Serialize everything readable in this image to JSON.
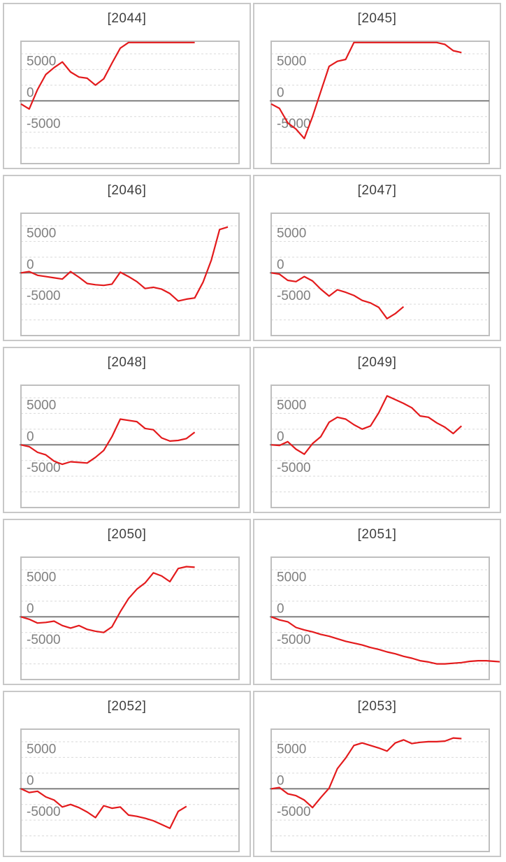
{
  "charts_meta": {
    "y_tick_labels": [
      "5000",
      "0",
      "-5000"
    ],
    "line_color": "#e31a1c",
    "zero_line_color": "#808080",
    "grid_color": "#d9d9d9"
  },
  "chart_data": [
    {
      "type": "line",
      "title": "[2044]",
      "ylim": [
        -10000,
        9500
      ],
      "y_ticks": [
        5000,
        0,
        -5000
      ],
      "grid": true,
      "x": [
        0,
        1,
        2,
        3,
        4,
        5,
        6,
        7,
        8,
        9,
        10,
        11,
        12,
        13,
        14,
        15,
        16,
        17,
        18,
        19,
        20,
        21
      ],
      "y": [
        -500,
        -1300,
        1800,
        4200,
        5300,
        6200,
        4600,
        3800,
        3600,
        2500,
        3500,
        6000,
        8400,
        9300,
        9300,
        9300,
        9300,
        9300,
        9300,
        9300,
        9300,
        9300
      ]
    },
    {
      "type": "line",
      "title": "[2045]",
      "ylim": [
        -10000,
        9500
      ],
      "y_ticks": [
        5000,
        0,
        -5000
      ],
      "grid": true,
      "x": [
        0,
        1,
        2,
        3,
        4,
        5,
        6,
        7,
        8,
        9,
        10,
        11,
        12,
        13,
        14,
        15,
        16,
        17,
        18,
        19,
        20,
        21,
        22,
        23
      ],
      "y": [
        -500,
        -1200,
        -3500,
        -4500,
        -6000,
        -2500,
        1500,
        5500,
        6300,
        6600,
        9300,
        9300,
        9300,
        9300,
        9300,
        9300,
        9300,
        9300,
        9300,
        9300,
        9300,
        9000,
        8000,
        7700
      ]
    },
    {
      "type": "line",
      "title": "[2046]",
      "ylim": [
        -10000,
        9500
      ],
      "y_ticks": [
        5000,
        0,
        -5000
      ],
      "grid": true,
      "x": [
        0,
        1,
        2,
        3,
        4,
        5,
        6,
        7,
        8,
        9,
        10,
        11,
        12,
        13,
        14,
        15,
        16,
        17,
        18,
        19,
        20,
        21,
        22,
        23,
        24,
        25
      ],
      "y": [
        0,
        200,
        -400,
        -600,
        -800,
        -1000,
        200,
        -700,
        -1700,
        -1900,
        -2000,
        -1800,
        100,
        -600,
        -1400,
        -2500,
        -2300,
        -2600,
        -3300,
        -4500,
        -4200,
        -4000,
        -1500,
        2000,
        6900,
        7300
      ]
    },
    {
      "type": "line",
      "title": "[2047]",
      "ylim": [
        -10000,
        9500
      ],
      "y_ticks": [
        5000,
        0,
        -5000
      ],
      "grid": true,
      "x": [
        0,
        1,
        2,
        3,
        4,
        5,
        6,
        7,
        8,
        9,
        10,
        11,
        12,
        13,
        14,
        15,
        16
      ],
      "y": [
        0,
        -200,
        -1200,
        -1400,
        -600,
        -1300,
        -2600,
        -3700,
        -2700,
        -3100,
        -3600,
        -4400,
        -4800,
        -5500,
        -7300,
        -6500,
        -5400
      ]
    },
    {
      "type": "line",
      "title": "[2048]",
      "ylim": [
        -10000,
        9500
      ],
      "y_ticks": [
        5000,
        0,
        -5000
      ],
      "grid": true,
      "x": [
        0,
        1,
        2,
        3,
        4,
        5,
        6,
        7,
        8,
        9,
        10,
        11,
        12,
        13,
        14,
        15,
        16,
        17,
        18,
        19,
        20,
        21
      ],
      "y": [
        0,
        -300,
        -1200,
        -1600,
        -2600,
        -3100,
        -2700,
        -2800,
        -2900,
        -2000,
        -900,
        1300,
        4100,
        3900,
        3700,
        2600,
        2400,
        1100,
        600,
        700,
        1000,
        2000
      ]
    },
    {
      "type": "line",
      "title": "[2049]",
      "ylim": [
        -10000,
        9500
      ],
      "y_ticks": [
        5000,
        0,
        -5000
      ],
      "grid": true,
      "x": [
        0,
        1,
        2,
        3,
        4,
        5,
        6,
        7,
        8,
        9,
        10,
        11,
        12,
        13,
        14,
        15,
        16,
        17,
        18,
        19,
        20,
        21,
        22,
        23
      ],
      "y": [
        0,
        -100,
        500,
        -700,
        -1500,
        200,
        1300,
        3600,
        4400,
        4100,
        3200,
        2500,
        3000,
        5100,
        7800,
        7200,
        6600,
        5900,
        4600,
        4400,
        3500,
        2800,
        1800,
        3000
      ]
    },
    {
      "type": "line",
      "title": "[2050]",
      "ylim": [
        -10000,
        9500
      ],
      "y_ticks": [
        5000,
        0,
        -5000
      ],
      "grid": true,
      "x": [
        0,
        1,
        2,
        3,
        4,
        5,
        6,
        7,
        8,
        9,
        10,
        11,
        12,
        13,
        14,
        15,
        16,
        17,
        18,
        19,
        20,
        21
      ],
      "y": [
        0,
        -400,
        -1000,
        -900,
        -700,
        -1400,
        -1800,
        -1400,
        -2000,
        -2300,
        -2500,
        -1600,
        800,
        2900,
        4400,
        5400,
        7000,
        6500,
        5600,
        7700,
        8000,
        7900
      ]
    },
    {
      "type": "line",
      "title": "[2051]",
      "ylim": [
        -10000,
        9500
      ],
      "y_ticks": [
        5000,
        0,
        -5000
      ],
      "grid": true,
      "x": [
        0,
        1,
        2,
        3,
        4,
        5,
        6,
        7,
        8,
        9,
        10,
        11,
        12,
        13,
        14,
        15,
        16,
        17,
        18,
        19,
        20,
        21,
        22,
        23,
        24,
        25,
        26,
        27,
        28,
        29,
        30,
        31,
        32,
        33,
        34,
        35
      ],
      "y": [
        0,
        -500,
        -800,
        -1700,
        -2100,
        -2400,
        -2800,
        -3100,
        -3500,
        -3900,
        -4200,
        -4500,
        -4900,
        -5200,
        -5600,
        -5900,
        -6300,
        -6600,
        -7000,
        -7200,
        -7500,
        -7500,
        -7400,
        -7300,
        -7100,
        -7000,
        -7000,
        -7100,
        -7200,
        -7400,
        -7600,
        -7700,
        -7800,
        -7800,
        -7900,
        -8000
      ]
    },
    {
      "type": "line",
      "title": "[2052]",
      "ylim": [
        -10000,
        9500
      ],
      "y_ticks": [
        5000,
        0,
        -5000
      ],
      "grid": true,
      "x": [
        0,
        1,
        2,
        3,
        4,
        5,
        6,
        7,
        8,
        9,
        10,
        11,
        12,
        13,
        14,
        15,
        16,
        17,
        18,
        19,
        20
      ],
      "y": [
        0,
        -600,
        -400,
        -1300,
        -1800,
        -2900,
        -2500,
        -3000,
        -3700,
        -4600,
        -2700,
        -3100,
        -2900,
        -4200,
        -4400,
        -4700,
        -5100,
        -5700,
        -6300,
        -3600,
        -2800
      ]
    },
    {
      "type": "line",
      "title": "[2053]",
      "ylim": [
        -10000,
        9500
      ],
      "y_ticks": [
        5000,
        0,
        -5000
      ],
      "grid": true,
      "x": [
        0,
        1,
        2,
        3,
        4,
        5,
        6,
        7,
        8,
        9,
        10,
        11,
        12,
        13,
        14,
        15,
        16,
        17,
        18,
        19,
        20,
        21,
        22,
        23
      ],
      "y": [
        0,
        200,
        -800,
        -1100,
        -1800,
        -3000,
        -1400,
        100,
        3200,
        4900,
        6900,
        7300,
        6900,
        6500,
        6000,
        7300,
        7800,
        7200,
        7400,
        7500,
        7500,
        7600,
        8100,
        8000
      ]
    }
  ]
}
